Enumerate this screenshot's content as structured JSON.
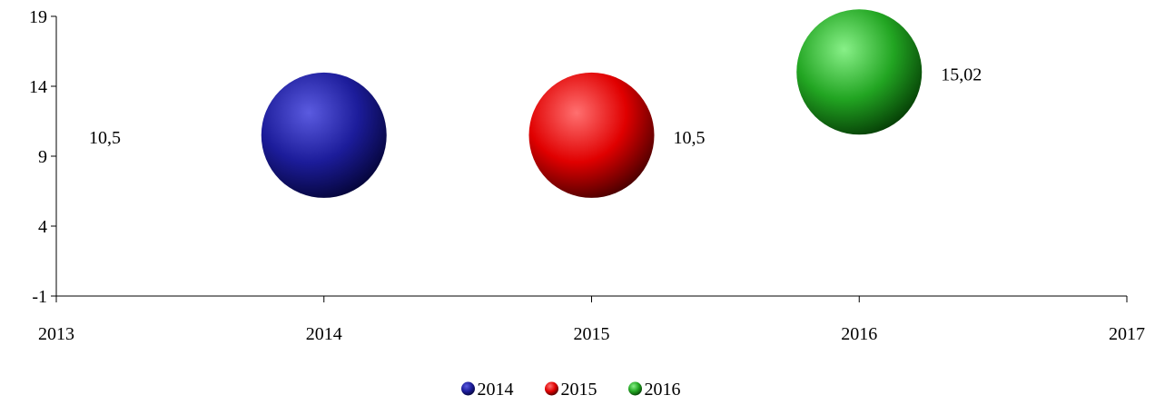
{
  "chart_data": {
    "type": "bubble",
    "x_ticks": [
      "2013",
      "2014",
      "2015",
      "2016",
      "2017"
    ],
    "y_ticks": [
      "-1",
      "4",
      "9",
      "14",
      "19"
    ],
    "xlim": [
      2013,
      2017
    ],
    "ylim": [
      -1,
      19
    ],
    "grid": false,
    "legend_position": "bottom",
    "series": [
      {
        "name": "2014",
        "x": 2014,
        "y": 10.5,
        "label": "10,5",
        "color": "#1a1a8e"
      },
      {
        "name": "2015",
        "x": 2015,
        "y": 10.5,
        "label": "10,5",
        "color": "#e00000"
      },
      {
        "name": "2016",
        "x": 2016,
        "y": 15.02,
        "label": "15,02",
        "color": "#20a020"
      }
    ]
  }
}
